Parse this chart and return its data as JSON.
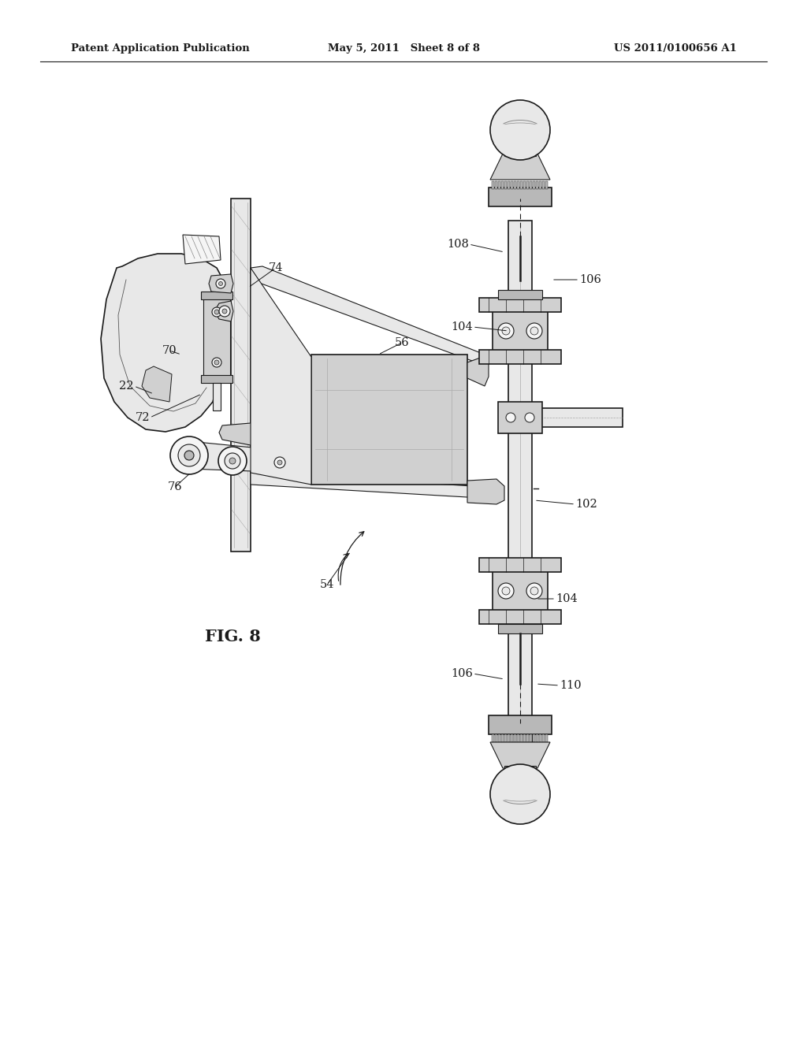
{
  "background_color": "#ffffff",
  "header_left": "Patent Application Publication",
  "header_center": "May 5, 2011   Sheet 8 of 8",
  "header_right": "US 2011/0100656 A1",
  "fig_label": "FIG. 8",
  "line_color": "#1a1a1a",
  "fill_light": "#e8e8e8",
  "fill_mid": "#d0d0d0",
  "fill_dark": "#b8b8b8",
  "fill_white": "#f5f5f5"
}
